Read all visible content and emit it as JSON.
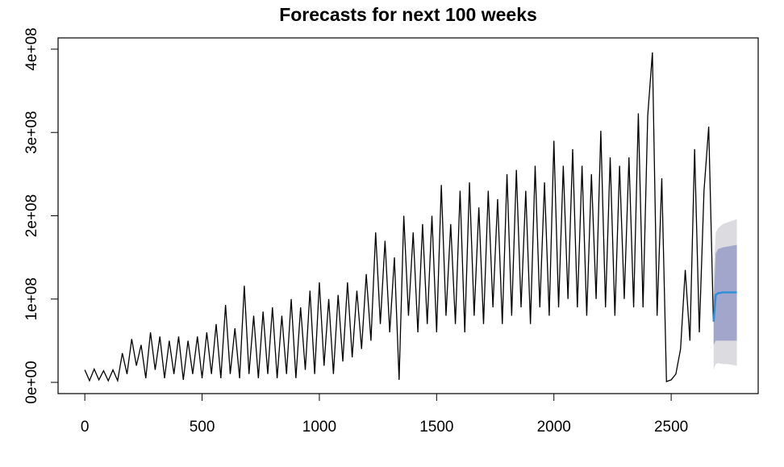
{
  "chart_data": {
    "type": "forecast",
    "title": "Forecasts for next 100 weeks",
    "xlim": [
      -114,
      2871
    ],
    "ylim": [
      -13500000,
      413500000
    ],
    "xticks": [
      0,
      500,
      1000,
      1500,
      2000,
      2500
    ],
    "yticks": [
      {
        "value": 0,
        "label": "0e+00"
      },
      {
        "value": 100000000,
        "label": "1e+08"
      },
      {
        "value": 200000000,
        "label": "2e+08"
      },
      {
        "value": 300000000,
        "label": "3e+08"
      },
      {
        "value": 400000000,
        "label": "4e+08"
      }
    ],
    "grid": false,
    "series": [
      {
        "color": "#000000",
        "x": [
          0,
          20,
          40,
          60,
          80,
          100,
          120,
          140,
          160,
          180,
          200,
          220,
          240,
          260,
          280,
          300,
          320,
          340,
          360,
          380,
          400,
          420,
          440,
          460,
          480,
          500,
          520,
          540,
          560,
          580,
          600,
          620,
          640,
          660,
          680,
          700,
          720,
          740,
          760,
          780,
          800,
          820,
          840,
          860,
          880,
          900,
          920,
          940,
          960,
          980,
          1000,
          1020,
          1040,
          1060,
          1080,
          1100,
          1120,
          1140,
          1160,
          1180,
          1200,
          1220,
          1240,
          1260,
          1280,
          1300,
          1320,
          1340,
          1360,
          1380,
          1400,
          1420,
          1440,
          1460,
          1480,
          1500,
          1520,
          1540,
          1560,
          1580,
          1600,
          1620,
          1640,
          1660,
          1680,
          1700,
          1720,
          1740,
          1760,
          1780,
          1800,
          1820,
          1840,
          1860,
          1880,
          1900,
          1920,
          1940,
          1960,
          1980,
          2000,
          2020,
          2040,
          2060,
          2080,
          2100,
          2120,
          2140,
          2160,
          2180,
          2200,
          2220,
          2240,
          2260,
          2280,
          2300,
          2320,
          2340,
          2360,
          2380,
          2400,
          2420,
          2440,
          2460,
          2480,
          2500,
          2520,
          2540,
          2560,
          2580,
          2600,
          2620,
          2640,
          2660,
          2680
        ],
        "values": [
          15000000.0,
          2000000.0,
          16000000.0,
          3000000.0,
          14000000.0,
          2000000.0,
          15000000.0,
          2000000.0,
          35000000.0,
          10000000.0,
          52000000.0,
          20000000.0,
          45000000.0,
          5000000.0,
          60000000.0,
          15000000.0,
          55000000.0,
          5000000.0,
          50000000.0,
          10000000.0,
          55000000.0,
          3000000.0,
          50000000.0,
          10000000.0,
          55000000.0,
          5000000.0,
          60000000.0,
          10000000.0,
          70000000.0,
          5000000.0,
          93000000.0,
          10000000.0,
          65000000.0,
          5000000.0,
          116000000.0,
          10000000.0,
          80000000.0,
          5000000.0,
          85000000.0,
          10000000.0,
          90000000.0,
          5000000.0,
          80000000.0,
          10000000.0,
          100000000.0,
          5000000.0,
          90000000.0,
          15000000.0,
          110000000.0,
          10000000.0,
          120000000.0,
          20000000.0,
          100000000.0,
          10000000.0,
          105000000.0,
          25000000.0,
          120000000.0,
          30000000.0,
          110000000.0,
          40000000.0,
          130000000.0,
          50000000.0,
          180000000.0,
          70000000.0,
          170000000.0,
          60000000.0,
          150000000.0,
          3000000.0,
          200000000.0,
          80000000.0,
          180000000.0,
          60000000.0,
          190000000.0,
          70000000.0,
          200000000.0,
          60000000.0,
          237000000.0,
          80000000.0,
          190000000.0,
          70000000.0,
          230000000.0,
          60000000.0,
          240000000.0,
          80000000.0,
          210000000.0,
          70000000.0,
          230000000.0,
          90000000.0,
          220000000.0,
          70000000.0,
          250000000.0,
          80000000.0,
          255000000.0,
          90000000.0,
          230000000.0,
          70000000.0,
          260000000.0,
          90000000.0,
          240000000.0,
          80000000.0,
          290000000.0,
          90000000.0,
          260000000.0,
          100000000.0,
          280000000.0,
          90000000.0,
          260000000.0,
          80000000.0,
          250000000.0,
          100000000.0,
          302000000.0,
          90000000.0,
          270000000.0,
          80000000.0,
          260000000.0,
          100000000.0,
          270000000.0,
          90000000.0,
          323000000.0,
          90000000.0,
          320000000.0,
          396000000.0,
          80000000.0,
          245000000.0,
          1000000.0,
          3000000.0,
          10000000.0,
          40000000.0,
          135000000.0,
          50000000.0,
          280000000.0,
          60000000.0,
          230000000.0,
          307000000.0,
          73000000.0
        ]
      }
    ],
    "forecast": {
      "color": "#2f8fdc",
      "x": [
        2681,
        2690,
        2700,
        2720,
        2740,
        2760,
        2780
      ],
      "mean": [
        73000000.0,
        105000000.0,
        107000000.0,
        108000000.0,
        108000000.0,
        108000000.0,
        108000000.0
      ],
      "intervals": [
        {
          "color": "#dcdce0",
          "lower": [
            15000000.0,
            22000000.0,
            23000000.0,
            22000000.0,
            22000000.0,
            21000000.0,
            20000000.0
          ],
          "upper": [
            130000000.0,
            180000000.0,
            185000000.0,
            190000000.0,
            192000000.0,
            194000000.0,
            196000000.0
          ]
        },
        {
          "color": "#a2a6cb",
          "lower": [
            45000000.0,
            50000000.0,
            50000000.0,
            50000000.0,
            50000000.0,
            50000000.0,
            50000000.0
          ],
          "upper": [
            100000000.0,
            155000000.0,
            160000000.0,
            162000000.0,
            163000000.0,
            164000000.0,
            165000000.0
          ]
        }
      ]
    }
  }
}
